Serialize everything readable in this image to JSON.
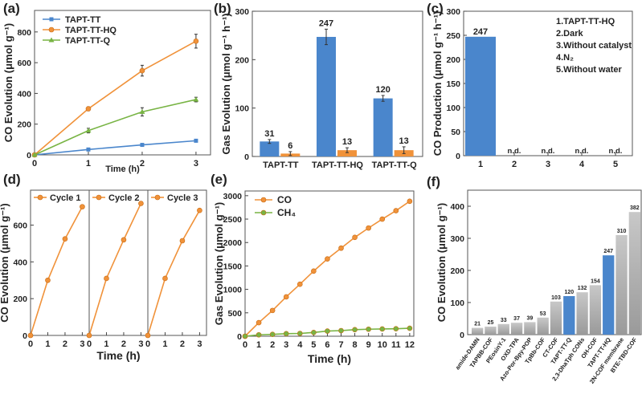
{
  "colors": {
    "blue": "#4a86cc",
    "orange": "#f0923a",
    "green": "#78b444",
    "gray": "#bcbcbc",
    "text": "#222222"
  },
  "chart_data": [
    {
      "panel": "(a)",
      "type": "line",
      "xlabel": "Time (h)",
      "ylabel": "CO Evolution (μmol g⁻¹)",
      "xlim": [
        0,
        3.27
      ],
      "ylim": [
        0,
        940
      ],
      "xticks": [
        0,
        1,
        2,
        3
      ],
      "yticks": [
        0,
        200,
        400,
        600,
        800
      ],
      "x": [
        0,
        1,
        2,
        3
      ],
      "legend": "top-left",
      "series": [
        {
          "name": "TAPT-TT",
          "color": "#4a86cc",
          "marker": "square",
          "values": [
            0,
            35,
            65,
            92
          ],
          "errors": [
            0,
            4,
            5,
            6
          ]
        },
        {
          "name": "TAPT-TT-HQ",
          "color": "#f0923a",
          "marker": "circle",
          "values": [
            0,
            300,
            548,
            740
          ],
          "errors": [
            0,
            12,
            35,
            45
          ]
        },
        {
          "name": "TAPT-TT-Q",
          "color": "#78b444",
          "marker": "triangle",
          "values": [
            0,
            158,
            280,
            360
          ],
          "errors": [
            0,
            15,
            27,
            15
          ]
        }
      ]
    },
    {
      "panel": "(b)",
      "type": "bar",
      "ylabel": "Gas Evolution (μmol g⁻¹ h⁻¹)",
      "ylim": [
        0,
        300
      ],
      "yticks": [
        0,
        100,
        200,
        300
      ],
      "categories": [
        "TAPT-TT",
        "TAPT-TT-HQ",
        "TAPT-TT-Q"
      ],
      "series": [
        {
          "color": "#4a86cc",
          "values": [
            31,
            247,
            120
          ],
          "errors": [
            4,
            16,
            6
          ],
          "labels": [
            "31",
            "247",
            "120"
          ]
        },
        {
          "color": "#f0923a",
          "values": [
            6,
            13,
            13
          ],
          "errors": [
            4,
            5,
            7
          ],
          "labels": [
            "6",
            "13",
            "13"
          ]
        }
      ]
    },
    {
      "panel": "(c)",
      "type": "bar",
      "ylabel": "CO Production (μmol g⁻¹ h⁻¹)",
      "ylim": [
        0,
        300
      ],
      "yticks": [
        0,
        50,
        100,
        150,
        200,
        250,
        300
      ],
      "categories": [
        "1",
        "2",
        "3",
        "4",
        "5"
      ],
      "values": [
        247,
        0,
        0,
        0,
        0
      ],
      "labels": [
        "247",
        "n.d.",
        "n.d.",
        "n.d.",
        "n.d."
      ],
      "legend_text": [
        "1.TAPT-TT-HQ",
        "2.Dark",
        "3.Without catalyst",
        "4.N₂",
        "5.Without water"
      ]
    },
    {
      "panel": "(d)",
      "type": "line",
      "xlabel": "Time (h)",
      "ylabel": "CO Evolution (μmol g⁻¹)",
      "ylim": [
        0,
        790
      ],
      "yticks": [
        0,
        200,
        400,
        600
      ],
      "xticks": [
        0,
        1,
        2,
        3
      ],
      "xlim": [
        0,
        3.4
      ],
      "x": [
        0,
        1,
        2,
        3
      ],
      "series": [
        {
          "name": "Cycle 1",
          "color": "#f0923a",
          "values": [
            0,
            300,
            525,
            700
          ]
        },
        {
          "name": "Cycle 2",
          "color": "#f0923a",
          "values": [
            0,
            310,
            520,
            718
          ]
        },
        {
          "name": "Cycle 3",
          "color": "#f0923a",
          "values": [
            0,
            310,
            515,
            680
          ]
        }
      ]
    },
    {
      "panel": "(e)",
      "type": "line",
      "xlabel": "Time (h)",
      "ylabel": "Gas Evolution (μmol g⁻¹)",
      "xlim": [
        0,
        12.3
      ],
      "ylim": [
        0,
        3100
      ],
      "xticks": [
        0,
        1,
        2,
        3,
        4,
        5,
        6,
        7,
        8,
        9,
        10,
        11,
        12
      ],
      "yticks": [
        0,
        500,
        1000,
        1500,
        2000,
        2500,
        3000
      ],
      "x": [
        0,
        1,
        2,
        3,
        4,
        5,
        6,
        7,
        8,
        9,
        10,
        11,
        12
      ],
      "legend": "top-left",
      "series": [
        {
          "name": "CO",
          "color": "#f0923a",
          "values": [
            0,
            290,
            550,
            840,
            1110,
            1390,
            1650,
            1880,
            2110,
            2310,
            2500,
            2680,
            2880
          ]
        },
        {
          "name": "CH₄",
          "color": "#78b444",
          "values": [
            0,
            30,
            40,
            55,
            60,
            80,
            110,
            120,
            140,
            150,
            155,
            160,
            170
          ]
        }
      ]
    },
    {
      "panel": "(f)",
      "type": "bar",
      "ylabel": "CO Evolution (μmol g⁻¹)",
      "ylim": [
        0,
        450
      ],
      "yticks": [
        0,
        100,
        200,
        300,
        400
      ],
      "categories": [
        "amide-DAMN",
        "TAPBB-COF",
        "PEosinY-1",
        "OXD-TPA",
        "Azo-Por-Bpy-POP",
        "TpBb-COF",
        "CT-COF",
        "TAPT-TT-Q",
        "2,3-DhaTph CONs",
        "OH-COF",
        "TAPT-TT-HQ",
        "2N-COF membrane",
        "BTE-TBD-COF"
      ],
      "values": [
        21,
        25,
        33,
        37,
        39,
        53,
        103,
        120,
        132,
        154,
        247,
        310,
        382
      ],
      "labels": [
        "21",
        "25",
        "33",
        "37",
        "39",
        "53",
        "103",
        "120",
        "132",
        "154",
        "247",
        "310",
        "382"
      ],
      "highlight": [
        "TAPT-TT-Q",
        "TAPT-TT-HQ"
      ]
    }
  ]
}
